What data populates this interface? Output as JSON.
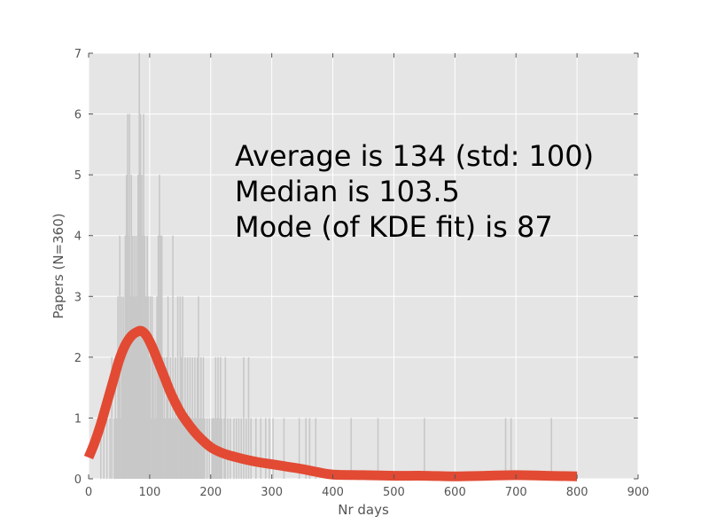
{
  "chart_data": {
    "type": "bar",
    "title": "",
    "xlabel": "Nr days",
    "ylabel": "Papers (N=360)",
    "xlim": [
      0,
      900
    ],
    "ylim": [
      0,
      7
    ],
    "x_ticks": [
      "0",
      "100",
      "200",
      "300",
      "400",
      "500",
      "600",
      "700",
      "800",
      "900"
    ],
    "y_ticks": [
      "0",
      "1",
      "2",
      "3",
      "4",
      "5",
      "6",
      "7"
    ],
    "grid": true,
    "annotations": [
      "Average is 134 (std: 100)",
      "Median is 103.5",
      "Mode (of KDE fit) is 87"
    ],
    "histogram": {
      "name": "",
      "color": "#c8c8c8",
      "bars": [
        {
          "x": 20,
          "y": 1
        },
        {
          "x": 25,
          "y": 1
        },
        {
          "x": 30,
          "y": 1
        },
        {
          "x": 35,
          "y": 1
        },
        {
          "x": 38,
          "y": 2
        },
        {
          "x": 42,
          "y": 1
        },
        {
          "x": 44,
          "y": 2
        },
        {
          "x": 46,
          "y": 1
        },
        {
          "x": 48,
          "y": 3
        },
        {
          "x": 50,
          "y": 2
        },
        {
          "x": 51,
          "y": 4
        },
        {
          "x": 53,
          "y": 1
        },
        {
          "x": 54,
          "y": 3
        },
        {
          "x": 56,
          "y": 2
        },
        {
          "x": 57,
          "y": 3
        },
        {
          "x": 59,
          "y": 2
        },
        {
          "x": 60,
          "y": 4
        },
        {
          "x": 61,
          "y": 1
        },
        {
          "x": 62,
          "y": 5
        },
        {
          "x": 63,
          "y": 3
        },
        {
          "x": 64,
          "y": 6
        },
        {
          "x": 65,
          "y": 2
        },
        {
          "x": 66,
          "y": 4
        },
        {
          "x": 67,
          "y": 6
        },
        {
          "x": 68,
          "y": 3
        },
        {
          "x": 69,
          "y": 1
        },
        {
          "x": 70,
          "y": 5
        },
        {
          "x": 71,
          "y": 2
        },
        {
          "x": 72,
          "y": 4
        },
        {
          "x": 73,
          "y": 3
        },
        {
          "x": 74,
          "y": 1
        },
        {
          "x": 75,
          "y": 4
        },
        {
          "x": 76,
          "y": 2
        },
        {
          "x": 77,
          "y": 3
        },
        {
          "x": 78,
          "y": 4
        },
        {
          "x": 79,
          "y": 1
        },
        {
          "x": 80,
          "y": 3
        },
        {
          "x": 81,
          "y": 5
        },
        {
          "x": 82,
          "y": 4
        },
        {
          "x": 83,
          "y": 7
        },
        {
          "x": 84,
          "y": 2
        },
        {
          "x": 85,
          "y": 6
        },
        {
          "x": 86,
          "y": 3
        },
        {
          "x": 87,
          "y": 5
        },
        {
          "x": 88,
          "y": 4
        },
        {
          "x": 89,
          "y": 2
        },
        {
          "x": 90,
          "y": 6
        },
        {
          "x": 91,
          "y": 3
        },
        {
          "x": 92,
          "y": 4
        },
        {
          "x": 93,
          "y": 1
        },
        {
          "x": 94,
          "y": 3
        },
        {
          "x": 95,
          "y": 2
        },
        {
          "x": 96,
          "y": 4
        },
        {
          "x": 97,
          "y": 1
        },
        {
          "x": 98,
          "y": 3
        },
        {
          "x": 100,
          "y": 2
        },
        {
          "x": 101,
          "y": 3
        },
        {
          "x": 103,
          "y": 1
        },
        {
          "x": 104,
          "y": 3
        },
        {
          "x": 106,
          "y": 2
        },
        {
          "x": 107,
          "y": 1
        },
        {
          "x": 109,
          "y": 2
        },
        {
          "x": 110,
          "y": 1
        },
        {
          "x": 112,
          "y": 3
        },
        {
          "x": 114,
          "y": 4
        },
        {
          "x": 115,
          "y": 1
        },
        {
          "x": 116,
          "y": 5
        },
        {
          "x": 117,
          "y": 2
        },
        {
          "x": 118,
          "y": 4
        },
        {
          "x": 120,
          "y": 4
        },
        {
          "x": 121,
          "y": 2
        },
        {
          "x": 122,
          "y": 1
        },
        {
          "x": 124,
          "y": 2
        },
        {
          "x": 125,
          "y": 1
        },
        {
          "x": 127,
          "y": 1
        },
        {
          "x": 128,
          "y": 2
        },
        {
          "x": 130,
          "y": 3
        },
        {
          "x": 131,
          "y": 1
        },
        {
          "x": 133,
          "y": 1
        },
        {
          "x": 134,
          "y": 2
        },
        {
          "x": 136,
          "y": 1
        },
        {
          "x": 138,
          "y": 4
        },
        {
          "x": 140,
          "y": 1
        },
        {
          "x": 142,
          "y": 2
        },
        {
          "x": 144,
          "y": 1
        },
        {
          "x": 146,
          "y": 3
        },
        {
          "x": 148,
          "y": 1
        },
        {
          "x": 150,
          "y": 3
        },
        {
          "x": 152,
          "y": 2
        },
        {
          "x": 154,
          "y": 3
        },
        {
          "x": 156,
          "y": 1
        },
        {
          "x": 158,
          "y": 2
        },
        {
          "x": 160,
          "y": 1
        },
        {
          "x": 162,
          "y": 2
        },
        {
          "x": 164,
          "y": 1
        },
        {
          "x": 166,
          "y": 2
        },
        {
          "x": 168,
          "y": 1
        },
        {
          "x": 170,
          "y": 2
        },
        {
          "x": 172,
          "y": 1
        },
        {
          "x": 174,
          "y": 2
        },
        {
          "x": 176,
          "y": 1
        },
        {
          "x": 178,
          "y": 2
        },
        {
          "x": 180,
          "y": 3
        },
        {
          "x": 182,
          "y": 1
        },
        {
          "x": 184,
          "y": 2
        },
        {
          "x": 186,
          "y": 1
        },
        {
          "x": 188,
          "y": 2
        },
        {
          "x": 190,
          "y": 1
        },
        {
          "x": 194,
          "y": 1
        },
        {
          "x": 198,
          "y": 1
        },
        {
          "x": 202,
          "y": 1
        },
        {
          "x": 204,
          "y": 1
        },
        {
          "x": 206,
          "y": 1
        },
        {
          "x": 208,
          "y": 2
        },
        {
          "x": 210,
          "y": 1
        },
        {
          "x": 212,
          "y": 2
        },
        {
          "x": 214,
          "y": 1
        },
        {
          "x": 216,
          "y": 2
        },
        {
          "x": 218,
          "y": 1
        },
        {
          "x": 222,
          "y": 1
        },
        {
          "x": 224,
          "y": 2
        },
        {
          "x": 228,
          "y": 1
        },
        {
          "x": 232,
          "y": 1
        },
        {
          "x": 238,
          "y": 1
        },
        {
          "x": 242,
          "y": 1
        },
        {
          "x": 246,
          "y": 1
        },
        {
          "x": 250,
          "y": 1
        },
        {
          "x": 254,
          "y": 2
        },
        {
          "x": 258,
          "y": 1
        },
        {
          "x": 262,
          "y": 2
        },
        {
          "x": 266,
          "y": 1
        },
        {
          "x": 274,
          "y": 1
        },
        {
          "x": 282,
          "y": 1
        },
        {
          "x": 290,
          "y": 1
        },
        {
          "x": 296,
          "y": 1
        },
        {
          "x": 302,
          "y": 1
        },
        {
          "x": 320,
          "y": 1
        },
        {
          "x": 345,
          "y": 1
        },
        {
          "x": 356,
          "y": 1
        },
        {
          "x": 362,
          "y": 1
        },
        {
          "x": 372,
          "y": 1
        },
        {
          "x": 430,
          "y": 1
        },
        {
          "x": 474,
          "y": 1
        },
        {
          "x": 550,
          "y": 1
        },
        {
          "x": 683,
          "y": 1
        },
        {
          "x": 692,
          "y": 1
        },
        {
          "x": 758,
          "y": 1
        }
      ]
    },
    "kde": {
      "name": "",
      "color": "#e24a33",
      "x": [
        0,
        10,
        20,
        30,
        40,
        50,
        60,
        70,
        80,
        87,
        95,
        105,
        115,
        125,
        135,
        150,
        165,
        180,
        200,
        220,
        240,
        260,
        280,
        300,
        325,
        350,
        375,
        400,
        450,
        500,
        550,
        600,
        650,
        700,
        750,
        800
      ],
      "y": [
        0.35,
        0.6,
        0.9,
        1.25,
        1.6,
        1.95,
        2.2,
        2.35,
        2.42,
        2.43,
        2.35,
        2.15,
        1.9,
        1.65,
        1.4,
        1.1,
        0.88,
        0.7,
        0.52,
        0.42,
        0.36,
        0.31,
        0.27,
        0.24,
        0.2,
        0.16,
        0.11,
        0.07,
        0.06,
        0.05,
        0.05,
        0.04,
        0.05,
        0.06,
        0.05,
        0.04
      ]
    }
  }
}
